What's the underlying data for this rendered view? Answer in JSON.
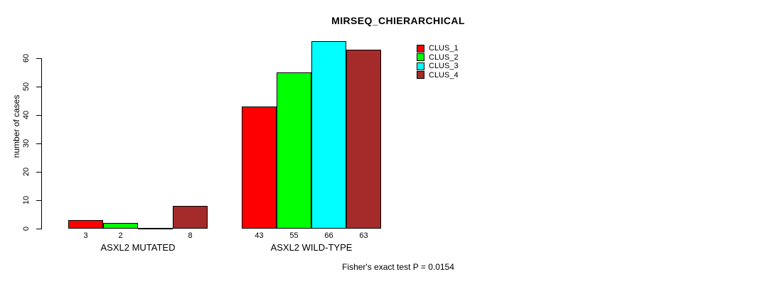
{
  "title": "MIRSEQ_CHIERARCHICAL",
  "y_axis_label": "number of cases",
  "footer": "Fisher's exact test P = 0.0154",
  "legend": {
    "items": [
      {
        "label": "CLUS_1",
        "color": "#FF0000"
      },
      {
        "label": "CLUS_2",
        "color": "#00FF00"
      },
      {
        "label": "CLUS_3",
        "color": "#00FFFF"
      },
      {
        "label": "CLUS_4",
        "color": "#A52A2A"
      }
    ]
  },
  "chart_data": {
    "type": "bar",
    "title": "MIRSEQ_CHIERARCHICAL",
    "xlabel": "",
    "ylabel": "number of cases",
    "categories": [
      "ASXL2 MUTATED",
      "ASXL2 WILD-TYPE"
    ],
    "series": [
      {
        "name": "CLUS_1",
        "color": "#FF0000",
        "values": [
          3,
          43
        ]
      },
      {
        "name": "CLUS_2",
        "color": "#00FF00",
        "values": [
          2,
          55
        ]
      },
      {
        "name": "CLUS_3",
        "color": "#00FFFF",
        "values": [
          0,
          66
        ]
      },
      {
        "name": "CLUS_4",
        "color": "#A52A2A",
        "values": [
          8,
          63
        ]
      }
    ],
    "bar_value_labels": [
      [
        "3",
        "2",
        "",
        "8"
      ],
      [
        "43",
        "55",
        "66",
        "63"
      ]
    ],
    "yticks": [
      0,
      10,
      20,
      30,
      40,
      50,
      60
    ],
    "ylim": [
      0,
      66
    ],
    "grid": false,
    "legend_position": "top-right",
    "annotation": "Fisher's exact test P = 0.0154"
  }
}
